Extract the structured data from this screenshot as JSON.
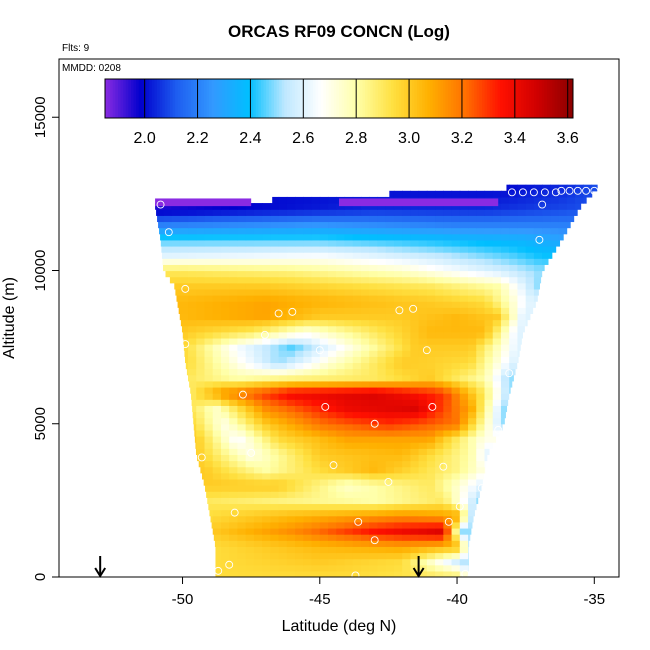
{
  "chart_data": {
    "type": "heatmap",
    "title": "ORCAS RF09 CONCN (Log)",
    "annotations": [
      "Flts: 9",
      "MMDD: 0208"
    ],
    "xlabel": "Latitude (deg N)",
    "ylabel": "Altitude (m)",
    "xlim": [
      -54.5,
      -34.1
    ],
    "ylim": [
      0,
      16900
    ],
    "xticks": [
      -50,
      -45,
      -40,
      -35
    ],
    "yticks": [
      0,
      5000,
      10000,
      15000
    ],
    "colorbar": {
      "range": [
        1.85,
        3.62
      ],
      "ticks": [
        2.0,
        2.2,
        2.4,
        2.6,
        2.8,
        3.0,
        3.2,
        3.4,
        3.6
      ],
      "tick_labels": [
        "2.0",
        "2.2",
        "2.4",
        "2.6",
        "2.8",
        "3.0",
        "3.2",
        "3.4",
        "3.6"
      ],
      "colors": [
        "#8a2be2",
        "#0000cd",
        "#1e5ef0",
        "#3399ff",
        "#00bfff",
        "#bfe8ff",
        "#ffffff",
        "#ffffa8",
        "#ffe040",
        "#ffb000",
        "#ff7000",
        "#ff1000",
        "#d00000",
        "#8b0000"
      ]
    },
    "domain_edges": {
      "altitude": [
        0,
        500,
        1000,
        2000,
        3000,
        4000,
        5000,
        6000,
        7000,
        8000,
        9000,
        9500,
        10000,
        11000,
        12100,
        12700
      ],
      "lat_min": [
        -48.8,
        -48.8,
        -48.8,
        -49.0,
        -49.2,
        -49.5,
        -49.6,
        -49.7,
        -49.9,
        -50.0,
        -50.2,
        -50.3,
        -50.7,
        -50.8,
        -51.0,
        -38.2
      ],
      "lat_max": [
        -39.6,
        -39.6,
        -39.6,
        -39.4,
        -39.1,
        -38.9,
        -38.3,
        -38.1,
        -37.8,
        -37.6,
        -37.1,
        -37.0,
        -36.9,
        -36.2,
        -35.5,
        -34.9
      ]
    },
    "layers": [
      {
        "alt": 0,
        "values": [
          [
            -48.8,
            2.95
          ],
          [
            -44.0,
            2.95
          ],
          [
            -40.0,
            2.9
          ],
          [
            -39.6,
            2.7
          ]
        ]
      },
      {
        "alt": 500,
        "values": [
          [
            -48.8,
            2.95
          ],
          [
            -45.0,
            3.0
          ],
          [
            -42.0,
            2.95
          ],
          [
            -39.6,
            2.5
          ]
        ]
      },
      {
        "alt": 1000,
        "values": [
          [
            -48.8,
            2.95
          ],
          [
            -45.0,
            3.05
          ],
          [
            -42.0,
            3.1
          ],
          [
            -40.0,
            3.05
          ],
          [
            -39.4,
            2.5
          ]
        ]
      },
      {
        "alt": 1500,
        "values": [
          [
            -49.0,
            3.0
          ],
          [
            -46.0,
            3.15
          ],
          [
            -43.0,
            3.35
          ],
          [
            -40.5,
            3.45
          ],
          [
            -39.8,
            2.5
          ]
        ]
      },
      {
        "alt": 2000,
        "values": [
          [
            -49.0,
            2.95
          ],
          [
            -46.0,
            3.05
          ],
          [
            -42.0,
            3.15
          ],
          [
            -40.0,
            3.1
          ],
          [
            -39.4,
            2.5
          ]
        ]
      },
      {
        "alt": 2500,
        "values": [
          [
            -49.0,
            2.9
          ],
          [
            -46.0,
            2.85
          ],
          [
            -43.0,
            2.8
          ],
          [
            -40.5,
            2.9
          ],
          [
            -39.2,
            2.5
          ]
        ]
      },
      {
        "alt": 3000,
        "values": [
          [
            -49.2,
            3.0
          ],
          [
            -46.5,
            3.0
          ],
          [
            -44.0,
            2.75
          ],
          [
            -41.0,
            2.9
          ],
          [
            -39.1,
            2.6
          ]
        ]
      },
      {
        "alt": 3500,
        "values": [
          [
            -49.2,
            3.0
          ],
          [
            -47.0,
            2.8
          ],
          [
            -45.0,
            2.95
          ],
          [
            -43.0,
            3.05
          ],
          [
            -40.0,
            2.85
          ],
          [
            -39.0,
            2.7
          ]
        ]
      },
      {
        "alt": 4000,
        "values": [
          [
            -49.5,
            3.0
          ],
          [
            -47.5,
            2.7
          ],
          [
            -45.0,
            3.0
          ],
          [
            -42.0,
            3.05
          ],
          [
            -39.5,
            2.8
          ],
          [
            -38.9,
            2.6
          ]
        ]
      },
      {
        "alt": 4500,
        "values": [
          [
            -49.5,
            3.0
          ],
          [
            -48.0,
            2.65
          ],
          [
            -46.5,
            2.95
          ],
          [
            -44.0,
            3.1
          ],
          [
            -41.0,
            3.1
          ],
          [
            -39.0,
            2.7
          ]
        ]
      },
      {
        "alt": 5000,
        "values": [
          [
            -49.6,
            2.95
          ],
          [
            -48.5,
            2.7
          ],
          [
            -47.0,
            3.0
          ],
          [
            -45.0,
            3.2
          ],
          [
            -42.5,
            3.3
          ],
          [
            -40.0,
            3.2
          ],
          [
            -38.3,
            2.5
          ]
        ]
      },
      {
        "alt": 5500,
        "values": [
          [
            -49.6,
            2.9
          ],
          [
            -48.8,
            2.75
          ],
          [
            -47.0,
            3.15
          ],
          [
            -44.0,
            3.4
          ],
          [
            -41.5,
            3.45
          ],
          [
            -39.5,
            3.1
          ],
          [
            -38.3,
            2.5
          ]
        ]
      },
      {
        "alt": 6000,
        "values": [
          [
            -49.7,
            2.9
          ],
          [
            -48.5,
            3.15
          ],
          [
            -46.0,
            3.4
          ],
          [
            -43.0,
            3.45
          ],
          [
            -40.5,
            3.3
          ],
          [
            -39.0,
            2.9
          ],
          [
            -38.1,
            2.5
          ]
        ]
      },
      {
        "alt": 6500,
        "values": [
          [
            -49.7,
            2.9
          ],
          [
            -48.0,
            2.8
          ],
          [
            -46.0,
            2.85
          ],
          [
            -43.0,
            2.9
          ],
          [
            -41.0,
            3.0
          ],
          [
            -39.0,
            2.8
          ],
          [
            -38.1,
            2.5
          ]
        ]
      },
      {
        "alt": 7000,
        "values": [
          [
            -49.8,
            2.95
          ],
          [
            -48.0,
            2.7
          ],
          [
            -46.5,
            2.5
          ],
          [
            -44.5,
            2.75
          ],
          [
            -42.0,
            3.0
          ],
          [
            -39.5,
            2.95
          ],
          [
            -38.0,
            2.6
          ]
        ]
      },
      {
        "alt": 7500,
        "values": [
          [
            -49.9,
            2.95
          ],
          [
            -48.0,
            2.65
          ],
          [
            -46.0,
            2.45
          ],
          [
            -44.0,
            2.7
          ],
          [
            -41.5,
            3.0
          ],
          [
            -39.5,
            3.0
          ],
          [
            -37.8,
            2.6
          ]
        ]
      },
      {
        "alt": 8000,
        "values": [
          [
            -49.9,
            3.0
          ],
          [
            -47.5,
            2.9
          ],
          [
            -45.5,
            2.7
          ],
          [
            -43.0,
            2.9
          ],
          [
            -41.0,
            3.05
          ],
          [
            -39.0,
            3.05
          ],
          [
            -37.8,
            2.6
          ]
        ]
      },
      {
        "alt": 8500,
        "values": [
          [
            -50.0,
            3.05
          ],
          [
            -47.0,
            3.1
          ],
          [
            -45.0,
            3.0
          ],
          [
            -42.0,
            3.0
          ],
          [
            -40.0,
            3.05
          ],
          [
            -38.5,
            3.0
          ],
          [
            -37.6,
            2.6
          ]
        ]
      },
      {
        "alt": 9000,
        "values": [
          [
            -50.1,
            3.05
          ],
          [
            -47.0,
            3.1
          ],
          [
            -44.0,
            3.05
          ],
          [
            -41.0,
            3.0
          ],
          [
            -39.0,
            2.95
          ],
          [
            -37.3,
            2.6
          ]
        ]
      },
      {
        "alt": 9500,
        "values": [
          [
            -50.2,
            3.0
          ],
          [
            -47.0,
            3.0
          ],
          [
            -44.0,
            2.95
          ],
          [
            -41.0,
            2.9
          ],
          [
            -38.5,
            2.8
          ],
          [
            -37.1,
            2.5
          ]
        ]
      },
      {
        "alt": 10000,
        "values": [
          [
            -50.3,
            2.9
          ],
          [
            -46.0,
            2.85
          ],
          [
            -42.0,
            2.75
          ],
          [
            -39.0,
            2.6
          ],
          [
            -37.0,
            2.5
          ]
        ]
      },
      {
        "alt": 10500,
        "values": [
          [
            -50.6,
            2.6
          ],
          [
            -45.0,
            2.65
          ],
          [
            -41.0,
            2.55
          ],
          [
            -38.0,
            2.45
          ],
          [
            -36.9,
            2.4
          ]
        ]
      },
      {
        "alt": 11000,
        "values": [
          [
            -50.7,
            2.45
          ],
          [
            -45.0,
            2.45
          ],
          [
            -41.0,
            2.4
          ],
          [
            -37.5,
            2.35
          ],
          [
            -36.2,
            2.3
          ]
        ]
      },
      {
        "alt": 11500,
        "values": [
          [
            -50.8,
            2.2
          ],
          [
            -45.0,
            2.25
          ],
          [
            -40.0,
            2.2
          ],
          [
            -37.0,
            2.2
          ],
          [
            -35.8,
            2.2
          ]
        ]
      },
      {
        "alt": 12000,
        "values": [
          [
            -51.0,
            1.95
          ],
          [
            -47.0,
            2.0
          ],
          [
            -43.0,
            2.05
          ],
          [
            -39.0,
            2.05
          ],
          [
            -35.5,
            2.1
          ]
        ]
      },
      {
        "alt": 12700,
        "values": [
          [
            -38.2,
            2.0
          ],
          [
            -36.0,
            2.05
          ],
          [
            -34.9,
            2.1
          ]
        ]
      }
    ],
    "purple_cap": {
      "alt_min": 12100,
      "alt_max": 12350,
      "segments": [
        [
          -51.0,
          -47.5
        ],
        [
          -44.3,
          -38.5
        ]
      ]
    },
    "observations": [
      [
        -50.8,
        12150
      ],
      [
        -50.5,
        11250
      ],
      [
        -38.0,
        12550
      ],
      [
        -37.6,
        12550
      ],
      [
        -37.2,
        12550
      ],
      [
        -36.8,
        12550
      ],
      [
        -36.4,
        12550
      ],
      [
        -36.2,
        12600
      ],
      [
        -35.9,
        12600
      ],
      [
        -35.6,
        12600
      ],
      [
        -35.3,
        12600
      ],
      [
        -35.0,
        12600
      ],
      [
        -36.9,
        12150
      ],
      [
        -37.0,
        11000
      ],
      [
        -49.9,
        9400
      ],
      [
        -47.0,
        7900
      ],
      [
        -46.0,
        8650
      ],
      [
        -46.5,
        8600
      ],
      [
        -45.0,
        7400
      ],
      [
        -42.1,
        8700
      ],
      [
        -41.6,
        8750
      ],
      [
        -41.1,
        7400
      ],
      [
        -47.8,
        5950
      ],
      [
        -44.8,
        5550
      ],
      [
        -40.9,
        5550
      ],
      [
        -43.0,
        5000
      ],
      [
        -44.5,
        3650
      ],
      [
        -42.5,
        3100
      ],
      [
        -40.5,
        3600
      ],
      [
        -39.1,
        2900
      ],
      [
        -38.5,
        4800
      ],
      [
        -38.1,
        6650
      ],
      [
        -43.6,
        1800
      ],
      [
        -43.0,
        1200
      ],
      [
        -40.3,
        1800
      ],
      [
        -47.5,
        4050
      ],
      [
        -48.3,
        400
      ],
      [
        -48.7,
        200
      ],
      [
        -48.1,
        2100
      ],
      [
        -49.3,
        3900
      ],
      [
        -49.9,
        7600
      ],
      [
        -39.7,
        100
      ],
      [
        -43.7,
        50
      ],
      [
        -39.9,
        2300
      ]
    ],
    "arrows": [
      -53.0,
      -41.4
    ]
  }
}
